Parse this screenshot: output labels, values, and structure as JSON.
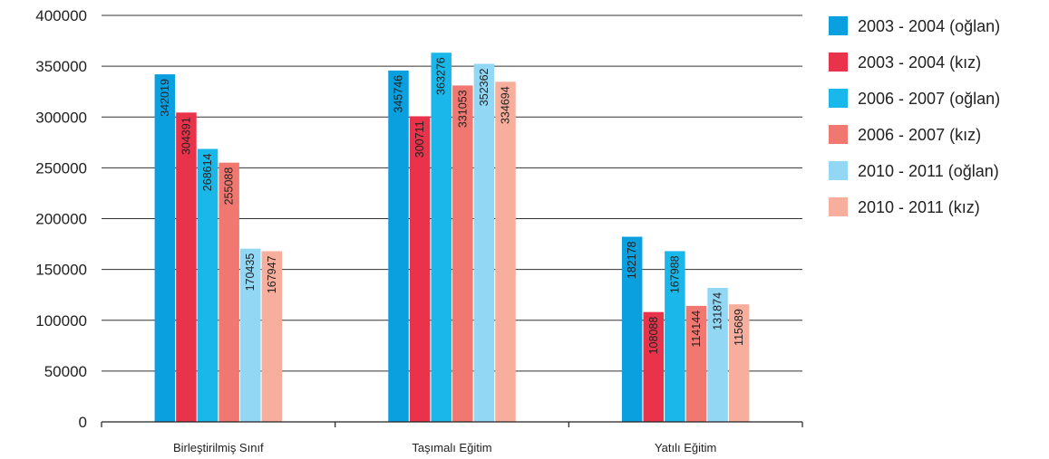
{
  "chart_data": {
    "type": "bar",
    "title": "",
    "xlabel": "",
    "ylabel": "",
    "ylim": [
      0,
      400000
    ],
    "yticks": [
      0,
      50000,
      100000,
      150000,
      200000,
      250000,
      300000,
      350000,
      400000
    ],
    "grid": "horizontal",
    "legend_placement": "right",
    "categories": [
      "Birleştirilmiş Sınıf",
      "Taşımalı Eğitim",
      "Yatılı Eğitim"
    ],
    "series": [
      {
        "name": "2003 - 2004 (oğlan)",
        "color": "#0aa0e0",
        "values": [
          342019,
          345746,
          182178
        ]
      },
      {
        "name": "2003 - 2004 (kız)",
        "color": "#e8334a",
        "values": [
          304391,
          300711,
          108088
        ]
      },
      {
        "name": "2006 - 2007 (oğlan)",
        "color": "#19b7ea",
        "values": [
          268614,
          363276,
          167988
        ]
      },
      {
        "name": "2006 - 2007 (kız)",
        "color": "#f07870",
        "values": [
          255088,
          331053,
          114144
        ]
      },
      {
        "name": "2010 - 2011 (oğlan)",
        "color": "#92d7f4",
        "values": [
          170435,
          352362,
          131874
        ]
      },
      {
        "name": "2010 - 2011 (kız)",
        "color": "#f7ae9c",
        "values": [
          167947,
          334694,
          115689
        ]
      }
    ]
  }
}
